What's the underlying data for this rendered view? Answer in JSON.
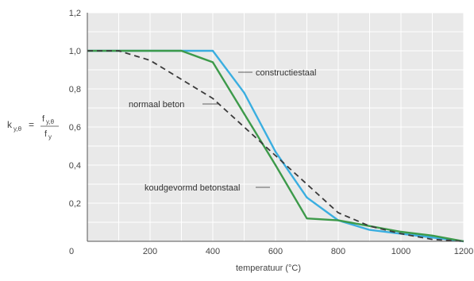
{
  "chart_data": {
    "type": "line",
    "xlabel": "temperatuur (°C)",
    "ylabel": {
      "main": "k",
      "main_sub": "y,θ",
      "equals": "=",
      "num": "f",
      "num_sub": "y,θ",
      "den": "f",
      "den_sub": "y"
    },
    "xlim": [
      0,
      1200
    ],
    "ylim": [
      0,
      1.2
    ],
    "x_ticks": [
      {
        "value": 0,
        "label": "0"
      },
      {
        "value": 200,
        "label": "200"
      },
      {
        "value": 400,
        "label": "400"
      },
      {
        "value": 600,
        "label": "600"
      },
      {
        "value": 800,
        "label": "800"
      },
      {
        "value": 1000,
        "label": "1000"
      },
      {
        "value": 1200,
        "label": "1200"
      }
    ],
    "y_ticks": [
      {
        "value": 0.2,
        "label": "0,2"
      },
      {
        "value": 0.4,
        "label": "0,4"
      },
      {
        "value": 0.6,
        "label": "0,6"
      },
      {
        "value": 0.8,
        "label": "0,8"
      },
      {
        "value": 1.0,
        "label": "1,0"
      },
      {
        "value": 1.2,
        "label": "1,2"
      }
    ],
    "grid": true,
    "grid_step_x": 100,
    "grid_step_y": 0.1,
    "series": [
      {
        "name": "constructiestaal",
        "color": "#3aaee0",
        "dash": "solid",
        "x": [
          0,
          100,
          200,
          300,
          400,
          500,
          600,
          700,
          800,
          900,
          1000,
          1100,
          1200
        ],
        "y": [
          1.0,
          1.0,
          1.0,
          1.0,
          1.0,
          0.78,
          0.47,
          0.23,
          0.11,
          0.06,
          0.04,
          0.02,
          0.0
        ]
      },
      {
        "name": "koudgevormd betonstaal",
        "color": "#3d9a4a",
        "dash": "solid",
        "x": [
          0,
          100,
          200,
          300,
          400,
          500,
          600,
          700,
          800,
          900,
          1000,
          1100,
          1200
        ],
        "y": [
          1.0,
          1.0,
          1.0,
          1.0,
          0.94,
          0.67,
          0.4,
          0.12,
          0.11,
          0.08,
          0.05,
          0.03,
          0.0
        ]
      },
      {
        "name": "normaal beton",
        "color": "#3a3a3a",
        "dash": "dashed",
        "x": [
          0,
          100,
          200,
          300,
          400,
          500,
          600,
          700,
          800,
          900,
          1000,
          1100,
          1200
        ],
        "y": [
          1.0,
          1.0,
          0.95,
          0.85,
          0.75,
          0.6,
          0.45,
          0.3,
          0.15,
          0.08,
          0.04,
          0.01,
          0.0
        ]
      }
    ],
    "annotations": [
      {
        "text": "constructiestaal",
        "series": 0
      },
      {
        "text": "normaal beton",
        "series": 2
      },
      {
        "text": "koudgevormd betonstaal",
        "series": 1
      }
    ]
  }
}
